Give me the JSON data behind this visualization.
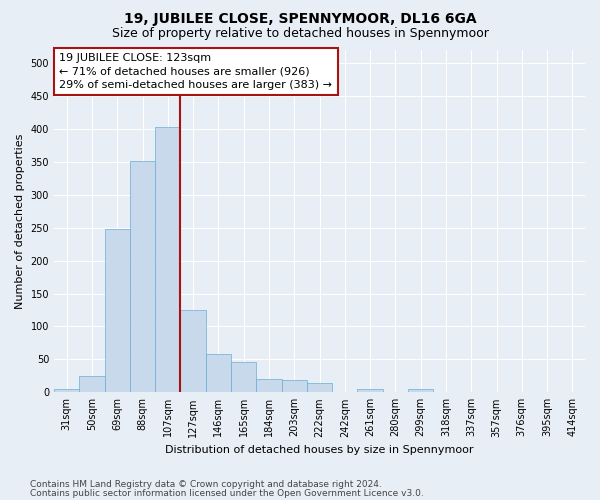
{
  "title": "19, JUBILEE CLOSE, SPENNYMOOR, DL16 6GA",
  "subtitle": "Size of property relative to detached houses in Spennymoor",
  "xlabel": "Distribution of detached houses by size in Spennymoor",
  "ylabel": "Number of detached properties",
  "bar_labels": [
    "31sqm",
    "50sqm",
    "69sqm",
    "88sqm",
    "107sqm",
    "127sqm",
    "146sqm",
    "165sqm",
    "184sqm",
    "203sqm",
    "222sqm",
    "242sqm",
    "261sqm",
    "280sqm",
    "299sqm",
    "318sqm",
    "337sqm",
    "357sqm",
    "376sqm",
    "395sqm",
    "414sqm"
  ],
  "bar_heights": [
    5,
    25,
    248,
    352,
    403,
    125,
    58,
    46,
    20,
    18,
    14,
    1,
    5,
    1,
    5,
    1,
    0,
    0,
    0,
    0,
    1
  ],
  "bar_color": "#c8d9ec",
  "bar_edge_color": "#6aaed6",
  "vline_color": "#aa1111",
  "annotation_text": "19 JUBILEE CLOSE: 123sqm\n← 71% of detached houses are smaller (926)\n29% of semi-detached houses are larger (383) →",
  "annotation_box_color": "white",
  "annotation_box_edge_color": "#aa1111",
  "ylim": [
    0,
    520
  ],
  "yticks": [
    0,
    50,
    100,
    150,
    200,
    250,
    300,
    350,
    400,
    450,
    500
  ],
  "footer_line1": "Contains HM Land Registry data © Crown copyright and database right 2024.",
  "footer_line2": "Contains public sector information licensed under the Open Government Licence v3.0.",
  "bg_color": "#e8eef5",
  "plot_bg_color": "#e8eef5",
  "grid_color": "#ffffff",
  "title_fontsize": 10,
  "subtitle_fontsize": 9,
  "axis_label_fontsize": 8,
  "tick_fontsize": 7,
  "annotation_fontsize": 8,
  "footer_fontsize": 6.5
}
